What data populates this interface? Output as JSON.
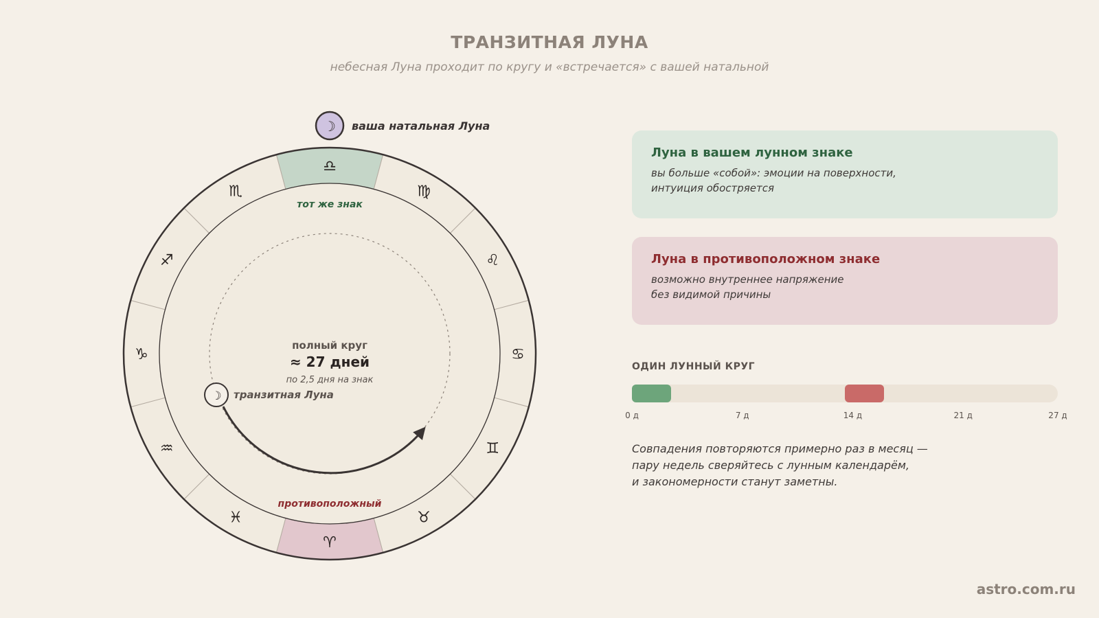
{
  "header": {
    "title": "ТРАНЗИТНАЯ ЛУНА",
    "subtitle": "небесная Луна проходит по кругу и «встречается» с вашей натальной"
  },
  "wheel": {
    "natal_moon_label": "ваша натальная Луна",
    "transit_moon_label": "транзитная Луна",
    "moon_glyph": "☽",
    "same_sign_label": "тот же знак",
    "opposite_label": "противоположный",
    "center_line1": "полный круг",
    "center_line2": "≈ 27 дней",
    "center_line3": "по 2,5 дня на знак",
    "signs": [
      "♎",
      "♍",
      "♌",
      "♋",
      "♊",
      "♉",
      "♈",
      "♓",
      "♒",
      "♑",
      "♐",
      "♏"
    ],
    "colors": {
      "same_sign": "#c5d6c8",
      "opposite_sign": "#e2c7cd",
      "natal_moon": "#cfc3e0",
      "same_label": "#2f6340",
      "opposite_label": "#8e2d30"
    }
  },
  "cards": {
    "same": {
      "title": "Луна в вашем лунном знаке",
      "line1": "вы больше «собой»: эмоции на поверхности,",
      "line2": "интуиция обостряется"
    },
    "opposite": {
      "title": "Луна в противоположном знаке",
      "line1": "возможно внутреннее напряжение",
      "line2": "без видимой причины"
    }
  },
  "cycle": {
    "title": "ОДИН ЛУННЫЙ КРУГ",
    "total_days": 27,
    "segments": [
      {
        "start_day": 0,
        "end_day": 2.5,
        "color": "#6da57b"
      },
      {
        "start_day": 13.5,
        "end_day": 16,
        "color": "#c96a68"
      }
    ],
    "ticks": [
      {
        "day": 0,
        "label": "0 д"
      },
      {
        "day": 7,
        "label": "7 д"
      },
      {
        "day": 14,
        "label": "14 д"
      },
      {
        "day": 21,
        "label": "21 д"
      },
      {
        "day": 27,
        "label": "27 д"
      }
    ]
  },
  "note": {
    "line1": "Совпадения повторяются примерно раз в месяц —",
    "line2": "пару недель сверяйтесь с лунным календарём,",
    "line3": "и закономерности станут заметны."
  },
  "footer": {
    "brand": "astro.com.ru"
  }
}
